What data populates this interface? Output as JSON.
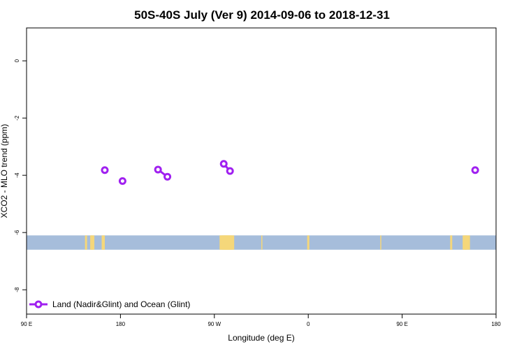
{
  "chart_data": {
    "type": "scatter",
    "title": "50S-40S July (Ver 9)   2014-09-06 to 2018-12-31",
    "xlabel": "Longitude (deg E)",
    "ylabel": "XCO2 - MLO trend (ppm)",
    "x_range_deg_east": [
      90,
      540
    ],
    "ylim": [
      -8.85,
      1.15
    ],
    "x_ticks": [
      {
        "value": 90,
        "label": "90 E"
      },
      {
        "value": 180,
        "label": "180"
      },
      {
        "value": 270,
        "label": "90 W"
      },
      {
        "value": 360,
        "label": "0"
      },
      {
        "value": 450,
        "label": "90 E"
      },
      {
        "value": 540,
        "label": "180"
      }
    ],
    "y_ticks": [
      {
        "value": 0,
        "label": "0"
      },
      {
        "value": -2,
        "label": "-2"
      },
      {
        "value": -4,
        "label": "-4"
      },
      {
        "value": -6,
        "label": "-6"
      },
      {
        "value": -8,
        "label": "-8"
      }
    ],
    "series": [
      {
        "name": "Land (Nadir&Glint) and Ocean (Glint)",
        "color": "#a020f0",
        "points": [
          {
            "x": 165,
            "y": -3.82
          },
          {
            "x": 182,
            "y": -4.2
          },
          {
            "x": 216,
            "y": -3.8
          },
          {
            "x": 225,
            "y": -4.05
          },
          {
            "x": 279,
            "y": -3.6
          },
          {
            "x": 285,
            "y": -3.85
          },
          {
            "x": 520,
            "y": -3.82
          }
        ],
        "segments": [
          [
            2,
            3
          ],
          [
            4,
            5
          ]
        ]
      }
    ],
    "latitude_band": {
      "y_range": [
        -6.6,
        -6.1
      ],
      "ocean_color": "#a6bddb",
      "land_color": "#f5d77a",
      "land_x_ranges": [
        [
          146,
          148
        ],
        [
          162,
          165
        ],
        [
          151,
          153
        ],
        [
          152,
          155
        ],
        [
          279,
          285
        ],
        [
          275,
          287
        ],
        [
          277,
          289
        ],
        [
          315,
          316
        ],
        [
          359,
          361
        ],
        [
          429,
          430
        ],
        [
          496,
          498
        ],
        [
          508,
          512
        ],
        [
          510,
          515
        ]
      ]
    },
    "grid": false,
    "legend_position": "bottom-left"
  }
}
